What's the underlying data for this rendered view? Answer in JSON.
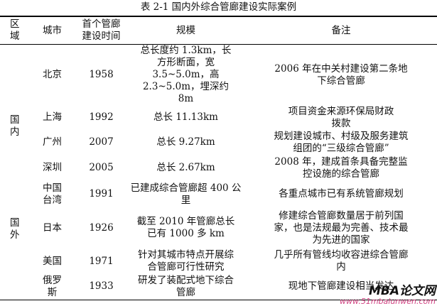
{
  "title": "表 2-1  国内外综合管廊建设实际案例",
  "headers": [
    "区域",
    "城市",
    "首个管廊建设时间",
    "规模",
    "备注"
  ],
  "regions": {
    "domestic": "国内",
    "foreign": "国外"
  },
  "rows": [
    {
      "city": "北京",
      "year": "1958",
      "scale": "总长度约 1.3km，长方形断面，宽 3.5~5.0m，高 2.3~5.0m，埋深约 8m",
      "note": "2006 年在中关村建设第二条地下综合管廊"
    },
    {
      "city": "上海",
      "year": "1992",
      "scale": "总长 11.13km",
      "note": "项目资金来源环保局财政拨款"
    },
    {
      "city": "广州",
      "year": "2007",
      "scale": "总长 9.27km",
      "note": "规划建设城市、村级及服务建筑组团的“三级综合管廊”"
    },
    {
      "city": "深圳",
      "year": "2005",
      "scale": "总长 2.67km",
      "note": "2008 年，建成首条具备完整监控设施的综合管廊"
    },
    {
      "city": "中国台湾",
      "year": "1991",
      "scale": "已建成综合管廊超 400 公里",
      "note": "各重点城市已有系统管廊规划"
    },
    {
      "city": "日本",
      "year": "1926",
      "scale": "截至 2010 年管廊总长已有 1000 多 km",
      "note": "修建综合管廊数量居于前列国家，也是法规最为完善、技术最为先进的国家"
    },
    {
      "city": "美国",
      "year": "1971",
      "scale": "针对其城市特点开展综合管廊可行性研究",
      "note": "几乎所有管线均收容进综合管廊内"
    },
    {
      "city": "俄罗斯",
      "year": "1933",
      "scale": "研发了装配式地下综合管廊",
      "note": "现地下管廊建设相当发达"
    }
  ],
  "watermark": {
    "logo": "MBA论文网",
    "url": "www.51mbalunwen.com"
  }
}
